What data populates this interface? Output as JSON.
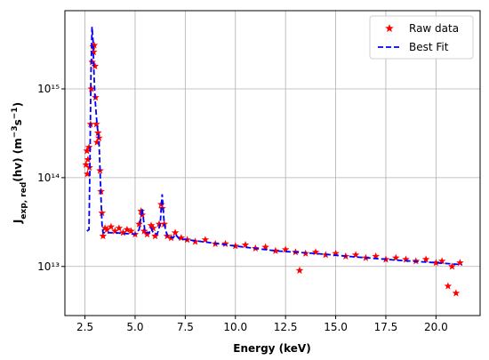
{
  "chart_data": {
    "type": "scatter",
    "x_label": "Energy (keV)",
    "y_label": [
      {
        "text": "J"
      },
      {
        "text": "exp, red",
        "style": "sub"
      },
      {
        "text": "(hv) (m"
      },
      {
        "text": "−3",
        "style": "super"
      },
      {
        "text": "s"
      },
      {
        "text": "−1",
        "style": "super"
      },
      {
        "text": ")"
      }
    ],
    "xlim": [
      1.5,
      22.2
    ],
    "xticks": [
      2.5,
      {
        "value": 5,
        "label": "5.0"
      },
      7.5,
      {
        "value": 10,
        "label": "10.0"
      },
      12.5,
      {
        "value": 15,
        "label": "15.0"
      },
      17.5,
      {
        "value": 20,
        "label": "20.0"
      }
    ],
    "ylim": [
      2800000000000.0,
      7600000000000000.0
    ],
    "yticks": [
      {
        "value": 10000000000000.0,
        "label": "10¹³"
      },
      {
        "value": 100000000000000.0,
        "label": "10¹⁴"
      },
      {
        "value": 1000000000000000.0,
        "label": "10¹⁵"
      }
    ],
    "log_y": true,
    "grid": true,
    "legend": "upper right",
    "series": [
      {
        "name": "Raw data",
        "color": "#ff0000",
        "marker": "star",
        "x": [
          2.55,
          2.6,
          2.62,
          2.65,
          2.7,
          2.72,
          2.78,
          2.82,
          2.86,
          2.9,
          2.93,
          2.96,
          3.0,
          3.03,
          3.07,
          3.1,
          3.15,
          3.2,
          3.25,
          3.3,
          3.35,
          3.4,
          3.5,
          3.6,
          3.8,
          4.0,
          4.2,
          4.4,
          4.6,
          4.8,
          5.0,
          5.2,
          5.3,
          5.35,
          5.45,
          5.6,
          5.8,
          5.9,
          6.0,
          6.2,
          6.3,
          6.35,
          6.45,
          6.6,
          6.8,
          7.0,
          7.3,
          7.6,
          8.0,
          8.5,
          9.0,
          9.5,
          10.0,
          10.5,
          11.0,
          11.5,
          12.0,
          12.5,
          13.0,
          13.2,
          13.5,
          14.0,
          14.5,
          15.0,
          15.5,
          16.0,
          16.5,
          17.0,
          17.5,
          18.0,
          18.5,
          19.0,
          19.5,
          20.0,
          20.3,
          20.6,
          20.8,
          21.0,
          21.2
        ],
        "values": [
          140000000000000.0,
          200000000000000.0,
          110000000000000.0,
          160000000000000.0,
          220000000000000.0,
          130000000000000.0,
          400000000000000.0,
          1000000000000000.0,
          2000000000000000.0,
          3000000000000000.0,
          2600000000000000.0,
          3100000000000000.0,
          1800000000000000.0,
          800000000000000.0,
          400000000000000.0,
          250000000000000.0,
          320000000000000.0,
          280000000000000.0,
          120000000000000.0,
          70000000000000.0,
          40000000000000.0,
          22000000000000.0,
          27000000000000.0,
          26000000000000.0,
          28000000000000.0,
          25000000000000.0,
          27000000000000.0,
          24000000000000.0,
          26000000000000.0,
          25000000000000.0,
          23000000000000.0,
          30000000000000.0,
          42000000000000.0,
          38000000000000.0,
          25000000000000.0,
          23000000000000.0,
          29000000000000.0,
          27000000000000.0,
          22000000000000.0,
          30000000000000.0,
          50000000000000.0,
          45000000000000.0,
          30000000000000.0,
          22000000000000.0,
          21000000000000.0,
          24000000000000.0,
          21000000000000.0,
          20000000000000.0,
          19000000000000.0,
          20000000000000.0,
          18000000000000.0,
          18000000000000.0,
          17000000000000.0,
          17500000000000.0,
          16000000000000.0,
          16500000000000.0,
          15000000000000.0,
          15500000000000.0,
          14500000000000.0,
          9000000000000.0,
          14000000000000.0,
          14500000000000.0,
          13500000000000.0,
          14000000000000.0,
          13000000000000.0,
          13500000000000.0,
          12500000000000.0,
          13000000000000.0,
          12000000000000.0,
          12500000000000.0,
          12000000000000.0,
          11500000000000.0,
          12000000000000.0,
          11000000000000.0,
          11500000000000.0,
          6000000000000.0,
          10000000000000.0,
          5000000000000.0,
          11000000000000.0
        ]
      },
      {
        "name": "Best Fit",
        "color": "#0000ff",
        "dashed": true,
        "x": [
          2.6,
          2.7,
          2.75,
          2.8,
          2.85,
          2.9,
          2.95,
          3.0,
          3.1,
          3.2,
          3.3,
          3.35,
          3.4,
          3.6,
          4.0,
          4.5,
          5.0,
          5.2,
          5.35,
          5.5,
          5.7,
          5.8,
          5.9,
          6.1,
          6.25,
          6.35,
          6.45,
          6.6,
          6.9,
          7.0,
          7.2,
          8,
          10,
          12,
          14,
          16,
          18,
          20,
          21.3
        ],
        "values": [
          25000000000000.0,
          26000000000000.0,
          150000000000000.0,
          1500000000000000.0,
          5000000000000000.0,
          3500000000000000.0,
          1500000000000000.0,
          800000000000000.0,
          400000000000000.0,
          250000000000000.0,
          60000000000000.0,
          30000000000000.0,
          24000000000000.0,
          24000000000000.0,
          24000000000000.0,
          23500000000000.0,
          23000000000000.0,
          26000000000000.0,
          45000000000000.0,
          24000000000000.0,
          24000000000000.0,
          27000000000000.0,
          24000000000000.0,
          23000000000000.0,
          30000000000000.0,
          65000000000000.0,
          30000000000000.0,
          22000000000000.0,
          21000000000000.0,
          23000000000000.0,
          20500000000000.0,
          19500000000000.0,
          17000000000000.0,
          15000000000000.0,
          14000000000000.0,
          12800000000000.0,
          11800000000000.0,
          11000000000000.0,
          10500000000000.0
        ]
      }
    ]
  }
}
